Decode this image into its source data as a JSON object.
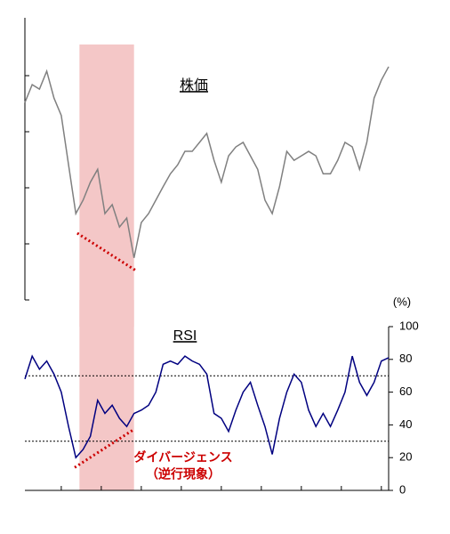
{
  "chart_data": [
    {
      "type": "line",
      "label": "株価",
      "x": [
        0,
        2,
        4,
        6,
        8,
        10,
        12,
        14,
        16,
        18,
        20,
        22,
        24,
        26,
        28,
        30,
        32,
        34,
        36,
        38,
        40,
        42,
        44,
        46,
        48,
        50,
        52,
        54,
        56,
        58,
        60,
        62,
        64,
        66,
        68,
        70,
        72,
        74,
        76,
        78,
        80,
        82,
        84,
        86,
        88,
        90,
        92,
        94,
        96,
        98,
        100
      ],
      "series": [
        {
          "name": "株価",
          "color": "#808080",
          "values": [
            3.52,
            3.84,
            3.76,
            4.08,
            3.6,
            3.29,
            2.41,
            1.54,
            1.78,
            2.1,
            2.33,
            1.54,
            1.7,
            1.3,
            1.46,
            0.75,
            1.38,
            1.54,
            1.78,
            2.02,
            2.25,
            2.41,
            2.65,
            2.65,
            2.81,
            2.97,
            2.49,
            2.1,
            2.57,
            2.73,
            2.81,
            2.57,
            2.33,
            1.78,
            1.54,
            2.02,
            2.65,
            2.49,
            2.57,
            2.65,
            2.57,
            2.25,
            2.25,
            2.49,
            2.81,
            2.73,
            2.33,
            2.81,
            3.6,
            3.92,
            4.16
          ]
        }
      ],
      "xlim": [
        0,
        100
      ],
      "ylim": [
        0,
        5
      ],
      "yticks": [
        0,
        1,
        2,
        3,
        4
      ],
      "band": [
        15,
        30
      ],
      "band_color": "#f4c7c7",
      "divergence": {
        "x": [
          14.4,
          30.6
        ],
        "y": [
          1.19,
          0.52
        ],
        "color": "#cc0000"
      }
    },
    {
      "type": "line",
      "label": "RSI",
      "unit": "(%)",
      "x": [
        0,
        2,
        4,
        6,
        8,
        10,
        12,
        14,
        16,
        18,
        20,
        22,
        24,
        26,
        28,
        30,
        32,
        34,
        36,
        38,
        40,
        42,
        44,
        46,
        48,
        50,
        52,
        54,
        56,
        58,
        60,
        62,
        64,
        66,
        68,
        70,
        72,
        74,
        76,
        78,
        80,
        82,
        84,
        86,
        88,
        90,
        92,
        94,
        96,
        98,
        100
      ],
      "series": [
        {
          "name": "RSI",
          "color": "#000080",
          "values": [
            68,
            82,
            74,
            79,
            71,
            60,
            39,
            20,
            25,
            33,
            55,
            47,
            52,
            44,
            39,
            47,
            49,
            52,
            60,
            77,
            79,
            77,
            82,
            79,
            77,
            71,
            47,
            44,
            36,
            49,
            60,
            66,
            52,
            39,
            22,
            44,
            60,
            71,
            66,
            49,
            39,
            47,
            39,
            49,
            60,
            82,
            66,
            58,
            66,
            79,
            81
          ]
        }
      ],
      "xlim": [
        0,
        100
      ],
      "xticks": [
        10,
        21,
        32,
        43,
        54,
        65,
        76,
        87,
        98
      ],
      "ylim": [
        0,
        100
      ],
      "yticks": [
        0,
        20,
        40,
        60,
        80,
        100
      ],
      "ref_lines": [
        70,
        30
      ],
      "band": [
        15,
        30
      ],
      "band_color": "#f4c7c7",
      "divergence": {
        "x": [
          13.7,
          29.8
        ],
        "y": [
          14,
          37
        ],
        "color": "#cc0000"
      },
      "annotation": [
        "ダイバージェンス",
        "（逆行現象）"
      ]
    }
  ]
}
